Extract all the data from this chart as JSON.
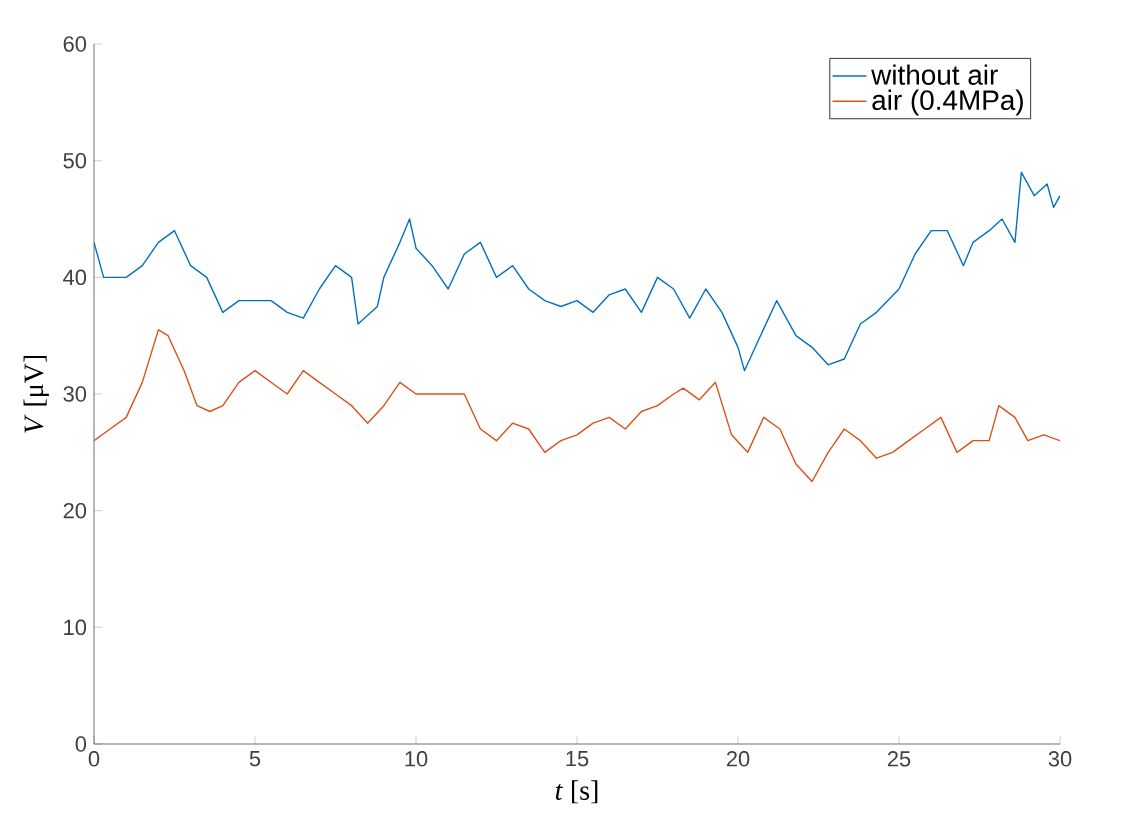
{
  "chart_data": {
    "type": "line",
    "xlabel": "*t* [s]",
    "ylabel": "*V* [μV]",
    "xlim": [
      0,
      30
    ],
    "ylim": [
      0,
      60
    ],
    "xticks": [
      0,
      5,
      10,
      15,
      20,
      25,
      30
    ],
    "yticks": [
      0,
      10,
      20,
      30,
      40,
      50,
      60
    ],
    "legend": "top right",
    "grid": false,
    "marker": "none",
    "line_style": "solid",
    "series": [
      {
        "name": "without air",
        "color": "#0072bd",
        "x": [
          0,
          0.3,
          1,
          1.5,
          2,
          2.5,
          3,
          3.5,
          4,
          4.5,
          5,
          5.5,
          6,
          6.5,
          7,
          7.5,
          8,
          8.2,
          8.8,
          9,
          9.5,
          9.8,
          10,
          10.5,
          11,
          11.5,
          12,
          12.5,
          13,
          13.5,
          14,
          14.5,
          15,
          15.5,
          16,
          16.5,
          17,
          17.5,
          18,
          18.5,
          19,
          19.5,
          20,
          20.2,
          20.7,
          21.2,
          21.8,
          22.3,
          22.8,
          23.3,
          23.8,
          24.3,
          25,
          25.5,
          26,
          26.5,
          27,
          27.3,
          27.8,
          28.2,
          28.6,
          28.8,
          29.2,
          29.6,
          29.8,
          30
        ],
        "values": [
          43,
          40,
          40,
          41,
          43,
          44,
          41,
          40,
          37,
          38,
          38,
          38,
          37,
          36.5,
          39,
          41,
          40,
          36,
          37.5,
          40,
          43,
          45,
          42.5,
          41,
          39,
          42,
          43,
          40,
          41,
          39,
          38,
          37.5,
          38,
          37,
          38.5,
          39,
          37,
          40,
          39,
          36.5,
          39,
          37,
          34,
          32,
          35,
          38,
          35,
          34,
          32.5,
          33,
          36,
          37,
          39,
          42,
          44,
          44,
          41,
          43,
          44,
          45,
          43,
          49,
          47,
          48,
          46,
          47
        ]
      },
      {
        "name": "air (0.4MPa)",
        "color": "#d95319",
        "x": [
          0,
          0.5,
          1,
          1.5,
          2,
          2.3,
          2.8,
          3.2,
          3.6,
          4,
          4.5,
          5,
          5.5,
          6,
          6.5,
          7,
          7.5,
          8,
          8.5,
          9,
          9.5,
          10,
          10.5,
          11,
          11.5,
          12,
          12.5,
          13,
          13.5,
          14,
          14.5,
          15,
          15.5,
          16,
          16.5,
          17,
          17.5,
          18,
          18.3,
          18.8,
          19.3,
          19.8,
          20.3,
          20.8,
          21.3,
          21.8,
          22.3,
          22.8,
          23.3,
          23.8,
          24.3,
          24.8,
          25.3,
          25.8,
          26.3,
          26.8,
          27.3,
          27.8,
          28.1,
          28.6,
          29,
          29.5,
          30
        ],
        "values": [
          26,
          27,
          28,
          31,
          35.5,
          35,
          32,
          29,
          28.5,
          29,
          31,
          32,
          31,
          30,
          32,
          31,
          30,
          29,
          27.5,
          29,
          31,
          30,
          30,
          30,
          30,
          27,
          26,
          27.5,
          27,
          25,
          26,
          26.5,
          27.5,
          28,
          27,
          28.5,
          29,
          30,
          30.5,
          29.5,
          31,
          26.5,
          25,
          28,
          27,
          24,
          22.5,
          25,
          27,
          26,
          24.5,
          25,
          26,
          27,
          28,
          25,
          26,
          26,
          29,
          28,
          26,
          26.5,
          26
        ]
      }
    ]
  }
}
